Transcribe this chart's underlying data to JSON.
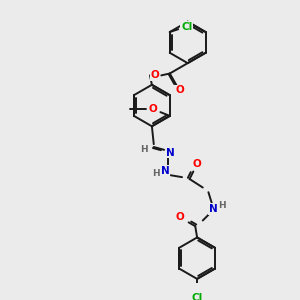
{
  "bg_color": "#ebebeb",
  "bond_color": "#1a1a1a",
  "atom_colors": {
    "O": "#ff0000",
    "N": "#0000cc",
    "Cl": "#00aa00",
    "H": "#666666",
    "C": "#1a1a1a"
  },
  "figsize": [
    3.0,
    3.0
  ],
  "dpi": 100
}
